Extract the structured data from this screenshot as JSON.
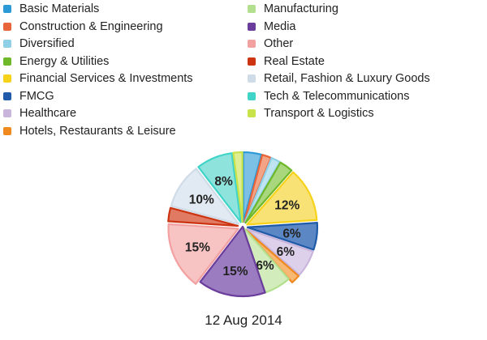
{
  "chart_data": {
    "type": "pie",
    "caption": "12 Aug 2014",
    "legend_position": "top",
    "slices": [
      {
        "name": "Basic Materials",
        "value": 4,
        "color": "#2b9ad7",
        "fill": "#7dc0e6",
        "exploded": true
      },
      {
        "name": "Construction & Engineering",
        "value": 2,
        "color": "#e8643a",
        "fill": "#f3a487",
        "exploded": true
      },
      {
        "name": "Diversified",
        "value": 2,
        "color": "#8fd0e6",
        "fill": "#bfe4f1",
        "exploded": true
      },
      {
        "name": "Energy & Utilities",
        "value": 3,
        "color": "#6fb82a",
        "fill": "#a8d77e",
        "exploded": true
      },
      {
        "name": "Financial Services & Investments",
        "value": 12,
        "color": "#f6d21a",
        "fill": "#f9e275",
        "label": "12%",
        "exploded": true
      },
      {
        "name": "FMCG",
        "value": 6,
        "color": "#1f5ba8",
        "fill": "#5b87c4",
        "label": "6%",
        "exploded": true
      },
      {
        "name": "Healthcare",
        "value": 6,
        "color": "#c9b4dc",
        "fill": "#ddd0ea",
        "label": "6%",
        "exploded": true
      },
      {
        "name": "Hotels, Restaurants & Leisure",
        "value": 2,
        "color": "#f08a1f",
        "fill": "#f6b873",
        "exploded": true
      },
      {
        "name": "Manufacturing",
        "value": 6,
        "color": "#b3e08e",
        "fill": "#d2edbb",
        "label": "6%",
        "exploded": false
      },
      {
        "name": "Media",
        "value": 15,
        "color": "#6a3c9c",
        "fill": "#9b7cc0",
        "label": "15%",
        "exploded": false
      },
      {
        "name": "Other",
        "value": 15,
        "color": "#f2a0a0",
        "fill": "#f7c3c3",
        "label": "15%",
        "exploded": true
      },
      {
        "name": "Real Estate",
        "value": 3,
        "color": "#cc3311",
        "fill": "#e07a62",
        "exploded": true
      },
      {
        "name": "Retail, Fashion & Luxury Goods",
        "value": 10,
        "color": "#cfdce8",
        "fill": "#e1eaf2",
        "label": "10%",
        "exploded": true
      },
      {
        "name": "Tech & Telecommunications",
        "value": 8,
        "color": "#40d4c8",
        "fill": "#8ee4dd",
        "label": "8%",
        "exploded": true
      },
      {
        "name": "Transport & Logistics",
        "value": 2,
        "color": "#c8e24a",
        "fill": "#dfee93",
        "exploded": true
      }
    ]
  }
}
